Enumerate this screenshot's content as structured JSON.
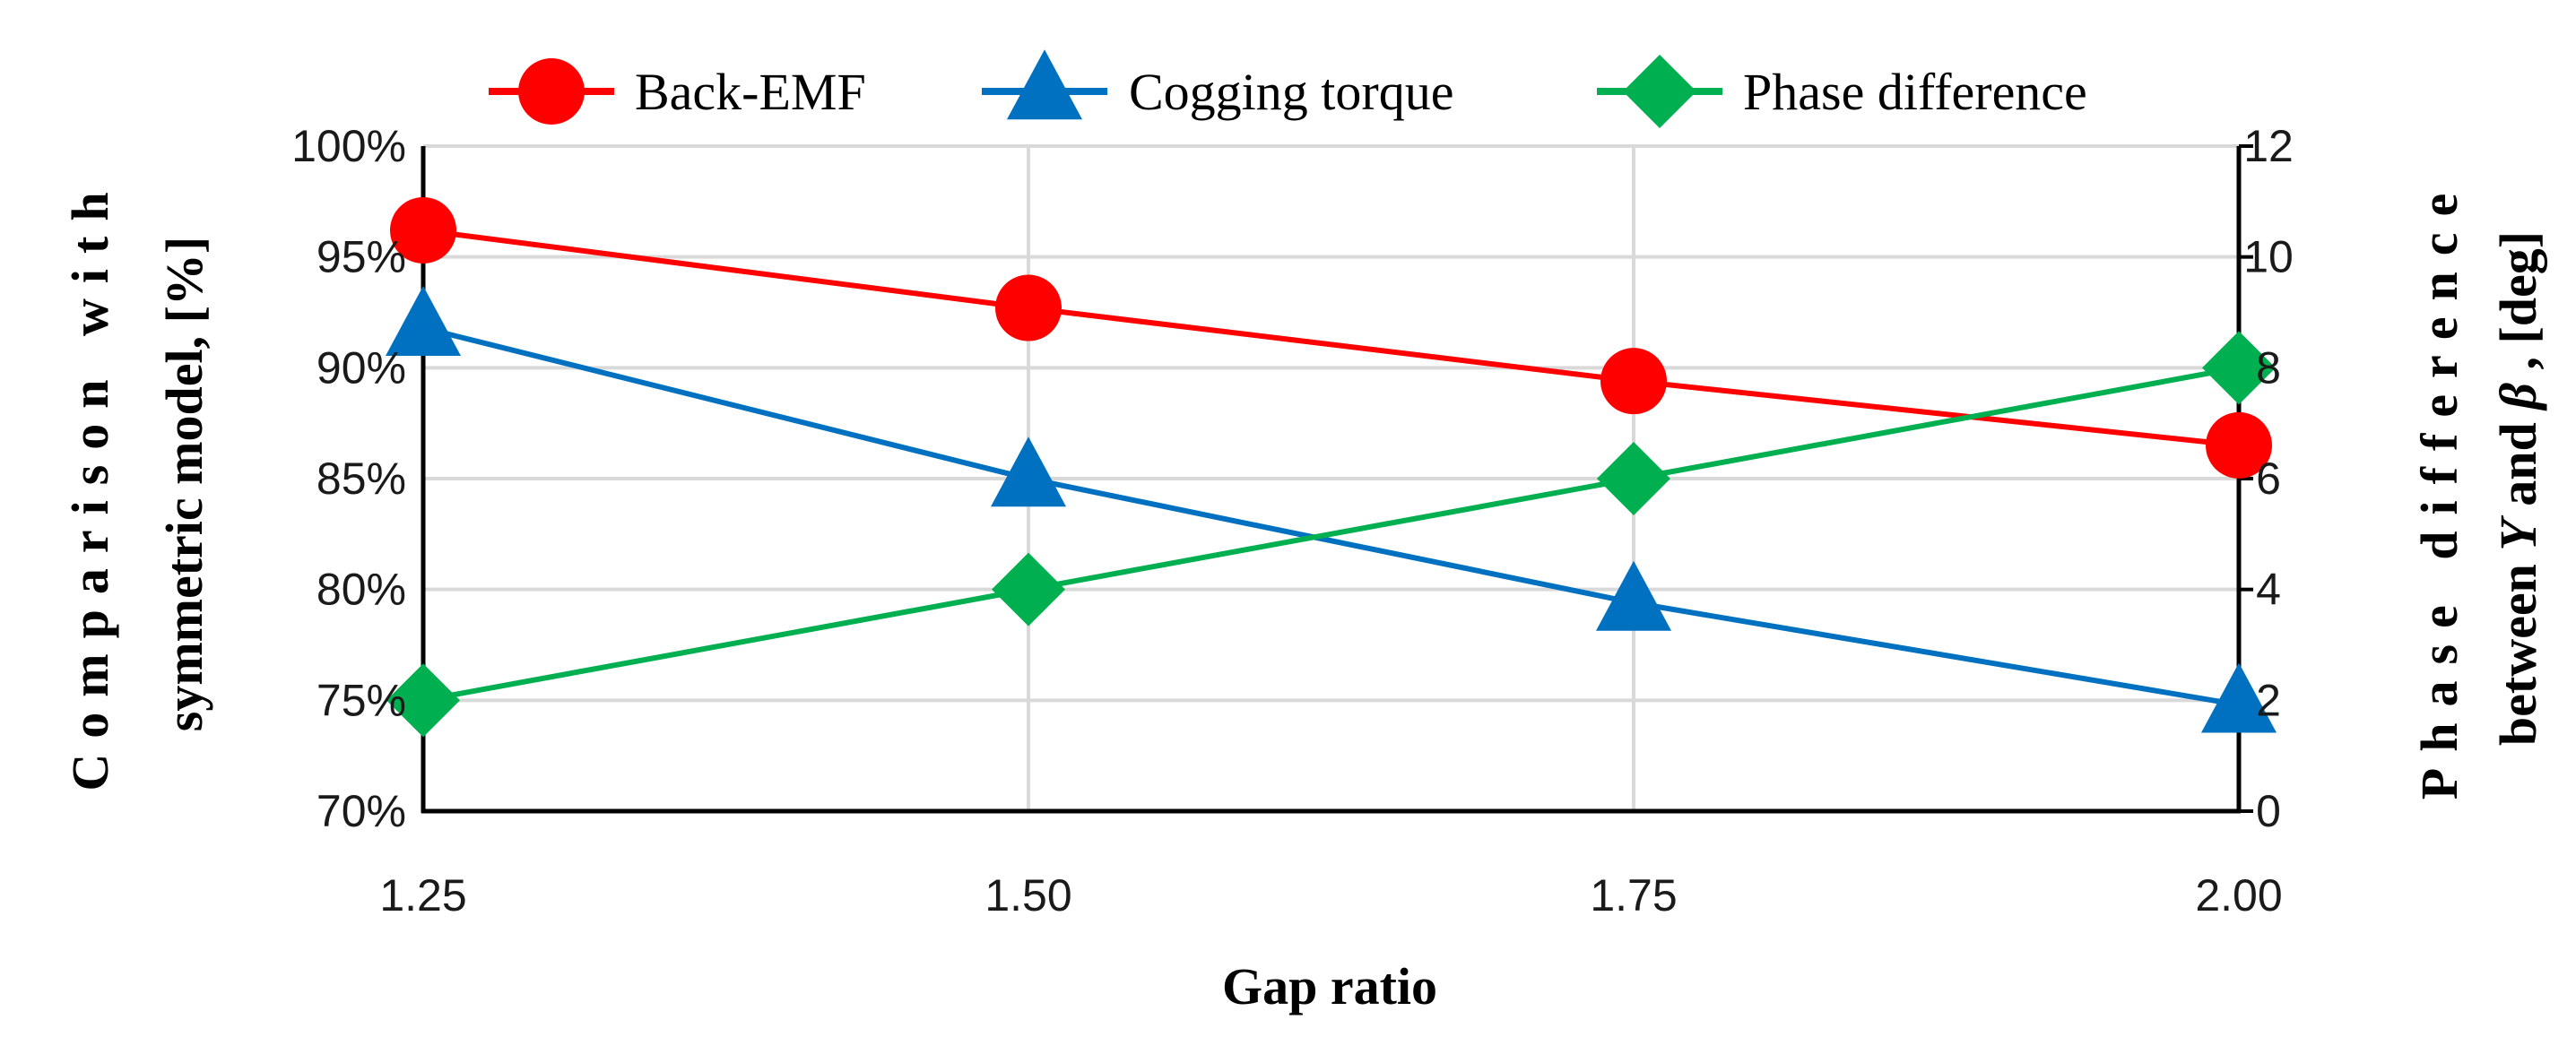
{
  "chart_data": {
    "type": "line",
    "categories": [
      "1.25",
      "1.50",
      "1.75",
      "2.00"
    ],
    "xlabel": "Gap ratio",
    "ylabel_left": {
      "line1": "Comparison with",
      "line2": "symmetric model, [%]"
    },
    "ylabel_right": {
      "line1": "Phase difference",
      "line2_prefix": "between ",
      "gamma": "Υ",
      "and": " and ",
      "beta": "β",
      "suffix": " , [deg]"
    },
    "y_left": {
      "min": 70,
      "max": 100,
      "step": 5,
      "tick_labels": [
        "70%",
        "75%",
        "80%",
        "85%",
        "90%",
        "95%",
        "100%"
      ]
    },
    "y_right": {
      "min": 0,
      "max": 12,
      "step": 2,
      "tick_labels": [
        "0",
        "2",
        "4",
        "6",
        "8",
        "10",
        "12"
      ]
    },
    "series": [
      {
        "name": "Back-EMF",
        "axis": "left",
        "marker": "circle",
        "color": "#ff0000",
        "values": [
          96.2,
          92.7,
          89.4,
          86.5
        ]
      },
      {
        "name": "Cogging torque",
        "axis": "left",
        "marker": "triangle",
        "color": "#0070c0",
        "values": [
          91.8,
          85.0,
          79.4,
          74.8
        ]
      },
      {
        "name": "Phase difference",
        "axis": "right",
        "marker": "diamond",
        "color": "#00b050",
        "values": [
          2,
          4,
          6,
          8
        ]
      }
    ],
    "legend_position": "top"
  }
}
